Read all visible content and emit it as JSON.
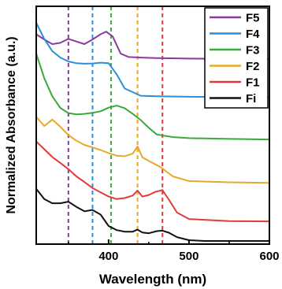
{
  "chart_data": {
    "type": "line",
    "title": "",
    "xlabel": "Wavelength (nm)",
    "ylabel": "Normalized Absorbance (a.u.)",
    "xlim": [
      310,
      600
    ],
    "x_ticks": [
      400,
      500,
      600
    ],
    "y_ticks_shown": false,
    "grid": false,
    "legend_position": "top-right",
    "reference_lines": [
      {
        "x": 350,
        "color": "#8b3a9e"
      },
      {
        "x": 380,
        "color": "#2a8fd8"
      },
      {
        "x": 403,
        "color": "#3aaa3a"
      },
      {
        "x": 436,
        "color": "#e8a82a"
      },
      {
        "x": 467,
        "color": "#e23a3a"
      }
    ],
    "series": [
      {
        "name": "F5",
        "color": "#8b3a9e",
        "x": [
          310,
          320,
          330,
          340,
          350,
          360,
          370,
          380,
          390,
          397,
          405,
          415,
          425,
          440,
          460,
          500,
          550,
          600
        ],
        "y": [
          8.0,
          7.8,
          7.62,
          7.67,
          7.82,
          7.72,
          7.62,
          7.8,
          8.0,
          8.1,
          7.92,
          7.25,
          7.12,
          7.1,
          7.08,
          7.06,
          7.05,
          7.04
        ]
      },
      {
        "name": "F4",
        "color": "#2a8fd8",
        "x": [
          310,
          320,
          330,
          340,
          350,
          360,
          370,
          380,
          390,
          400,
          410,
          420,
          440,
          460,
          500,
          550,
          600
        ],
        "y": [
          8.45,
          7.82,
          7.35,
          7.1,
          6.95,
          6.88,
          6.86,
          6.87,
          6.9,
          6.88,
          6.45,
          5.9,
          5.62,
          5.6,
          5.58,
          5.57,
          5.57
        ]
      },
      {
        "name": "F3",
        "color": "#3aaa3a",
        "x": [
          310,
          320,
          330,
          340,
          350,
          360,
          370,
          380,
          390,
          400,
          410,
          420,
          430,
          440,
          450,
          460,
          480,
          500,
          550,
          600
        ],
        "y": [
          7.25,
          6.3,
          5.6,
          5.15,
          4.95,
          4.9,
          4.92,
          4.96,
          5.02,
          5.16,
          5.24,
          5.14,
          4.92,
          4.68,
          4.38,
          4.12,
          4.02,
          3.98,
          3.95,
          3.93
        ]
      },
      {
        "name": "F2",
        "color": "#e8a82a",
        "x": [
          310,
          320,
          330,
          340,
          350,
          360,
          370,
          380,
          390,
          400,
          410,
          420,
          430,
          436,
          442,
          450,
          465,
          480,
          500,
          550,
          600
        ],
        "y": [
          4.8,
          4.45,
          4.7,
          4.42,
          4.1,
          3.88,
          3.72,
          3.62,
          3.52,
          3.4,
          3.3,
          3.28,
          3.38,
          3.66,
          3.24,
          3.1,
          2.85,
          2.5,
          2.32,
          2.27,
          2.25
        ]
      },
      {
        "name": "F1",
        "color": "#e23a3a",
        "x": [
          310,
          320,
          330,
          340,
          350,
          360,
          370,
          380,
          390,
          400,
          410,
          420,
          430,
          436,
          442,
          450,
          458,
          467,
          475,
          485,
          500,
          550,
          600
        ],
        "y": [
          3.85,
          3.55,
          3.25,
          3.02,
          2.78,
          2.5,
          2.28,
          2.05,
          1.88,
          1.72,
          1.62,
          1.66,
          1.76,
          1.95,
          1.72,
          1.78,
          1.9,
          1.97,
          1.6,
          1.1,
          0.85,
          0.77,
          0.76
        ]
      },
      {
        "name": "Fi",
        "color": "#111111",
        "x": [
          310,
          320,
          330,
          340,
          350,
          360,
          370,
          380,
          390,
          400,
          410,
          420,
          430,
          436,
          442,
          450,
          460,
          467,
          475,
          485,
          500,
          520,
          550,
          600
        ],
        "y": [
          2.02,
          1.62,
          1.46,
          1.46,
          1.52,
          1.32,
          1.15,
          1.2,
          1.02,
          0.58,
          0.42,
          0.36,
          0.36,
          0.44,
          0.33,
          0.3,
          0.38,
          0.4,
          0.32,
          0.15,
          0.03,
          0.0,
          0.0,
          0.0
        ]
      }
    ]
  }
}
